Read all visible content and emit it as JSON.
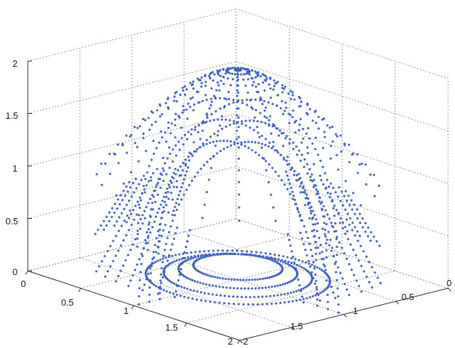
{
  "chart_data": {
    "type": "scatter",
    "projection": "3d",
    "title": "",
    "xlabel": "",
    "ylabel": "",
    "zlabel": "",
    "xlim": [
      0,
      2
    ],
    "ylim": [
      0,
      2
    ],
    "zlim": [
      0,
      2
    ],
    "grid": true,
    "marker_color": "#3a5fc8",
    "x_ticks": [
      "0",
      "0.5",
      "1",
      "1.5",
      "2"
    ],
    "y_ticks": [
      "0",
      "0.5",
      "1",
      "1.5",
      "2"
    ],
    "z_ticks": [
      "0",
      "0.5",
      "1",
      "1.5",
      "2"
    ],
    "series": [
      {
        "values": {
          "center": [
            1,
            1
          ],
          "arcs": [
            {
              "r": 0.75,
              "zmax": 1.3,
              "phi": 0
            },
            {
              "r": 0.85,
              "zmax": 1.5,
              "phi": 0
            },
            {
              "r": 0.95,
              "zmax": 1.7,
              "phi": 0
            },
            {
              "r": 0.75,
              "zmax": 1.3,
              "phi": 1.5708
            },
            {
              "r": 0.85,
              "zmax": 1.5,
              "phi": 1.5708
            },
            {
              "r": 0.95,
              "zmax": 1.7,
              "phi": 1.5708
            }
          ],
          "rings": [
            {
              "r": 0.3,
              "z": 0.12
            },
            {
              "r": 0.4,
              "z": 0.08
            },
            {
              "r": 0.5,
              "z": 0.04
            },
            {
              "r": 0.62,
              "z": 0.02
            }
          ],
          "fountain": {
            "rmin": 0.02,
            "rmax": 0.95,
            "zmin": 0.95,
            "zmax": 2.0,
            "spokes": 24
          }
        }
      }
    ]
  }
}
